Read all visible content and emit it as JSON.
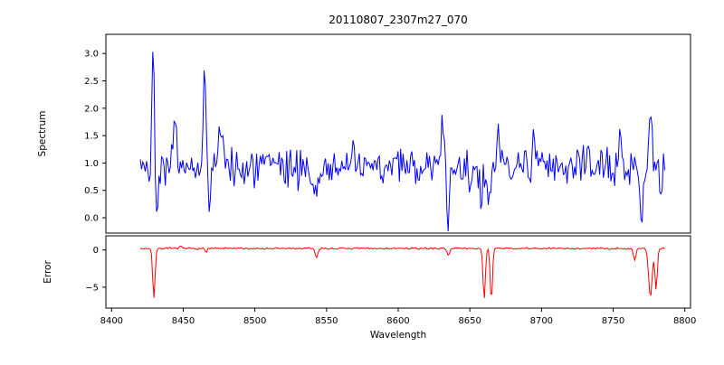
{
  "chart_data": {
    "type": "line",
    "title": "20110807_2307m27_070",
    "xlabel": "Wavelength",
    "x_range": [
      8420,
      8786
    ],
    "xlim": [
      8396,
      8804
    ],
    "x_ticks": [
      8400,
      8450,
      8500,
      8550,
      8600,
      8650,
      8700,
      8750,
      8800
    ],
    "x_tick_labels": [
      "8400",
      "8450",
      "8500",
      "8550",
      "8600",
      "8650",
      "8700",
      "8750",
      "8800"
    ],
    "grid": false,
    "legend": "none",
    "subplots": [
      {
        "name": "spectrum",
        "ylabel": "Spectrum",
        "line_color": "#0000ff",
        "ylim": [
          -0.28,
          3.35
        ],
        "y_ticks": [
          0.0,
          0.5,
          1.0,
          1.5,
          2.0,
          2.5,
          3.0
        ],
        "y_tick_labels": [
          "0.0",
          "0.5",
          "1.0",
          "1.5",
          "2.0",
          "2.5",
          "3.0"
        ],
        "baseline": 0.93,
        "noise_sigma": 0.17,
        "seed": 42,
        "n_points": 420,
        "features": [
          {
            "x": 8429,
            "amp": 2.2,
            "w": 0.9
          },
          {
            "x": 8431.5,
            "amp": -0.9,
            "w": 0.9
          },
          {
            "x": 8444,
            "amp": 0.85,
            "w": 1.0
          },
          {
            "x": 8465,
            "amp": 1.9,
            "w": 0.9
          },
          {
            "x": 8468.5,
            "amp": -0.55,
            "w": 0.9
          },
          {
            "x": 8476,
            "amp": 0.8,
            "w": 1.0
          },
          {
            "x": 8542,
            "amp": -0.45,
            "w": 2.5
          },
          {
            "x": 8631,
            "amp": 0.7,
            "w": 1.2
          },
          {
            "x": 8635,
            "amp": -0.85,
            "w": 1.0
          },
          {
            "x": 8650,
            "amp": -0.5,
            "w": 1.0
          },
          {
            "x": 8658,
            "amp": -0.65,
            "w": 1.2
          },
          {
            "x": 8663,
            "amp": -0.75,
            "w": 1.0
          },
          {
            "x": 8670,
            "amp": 0.55,
            "w": 1.0
          },
          {
            "x": 8695,
            "amp": 0.5,
            "w": 1.0
          },
          {
            "x": 8755,
            "amp": 0.6,
            "w": 1.0
          },
          {
            "x": 8770,
            "amp": -0.9,
            "w": 1.0
          },
          {
            "x": 8776,
            "amp": 0.85,
            "w": 1.0
          },
          {
            "x": 8783,
            "amp": -0.45,
            "w": 0.9
          }
        ]
      },
      {
        "name": "error",
        "ylabel": "Error",
        "line_color": "#ff0000",
        "ylim": [
          -7.8,
          1.9
        ],
        "y_ticks": [
          0,
          -5
        ],
        "y_tick_labels": [
          "0",
          "−5"
        ],
        "baseline": 0.2,
        "noise_sigma": 0.06,
        "seed": 7,
        "n_points": 420,
        "features": [
          {
            "x": 8429.5,
            "amp": -6.8,
            "w": 0.8
          },
          {
            "x": 8448,
            "amp": 0.35,
            "w": 0.7
          },
          {
            "x": 8466,
            "amp": -0.5,
            "w": 0.7
          },
          {
            "x": 8543,
            "amp": -1.2,
            "w": 0.9
          },
          {
            "x": 8635,
            "amp": -0.9,
            "w": 0.8
          },
          {
            "x": 8660,
            "amp": -6.9,
            "w": 0.8
          },
          {
            "x": 8665,
            "amp": -7.1,
            "w": 0.8
          },
          {
            "x": 8765,
            "amp": -1.6,
            "w": 0.8
          },
          {
            "x": 8776,
            "amp": -6.5,
            "w": 1.2
          },
          {
            "x": 8780,
            "amp": -5.5,
            "w": 0.8
          }
        ]
      }
    ]
  }
}
